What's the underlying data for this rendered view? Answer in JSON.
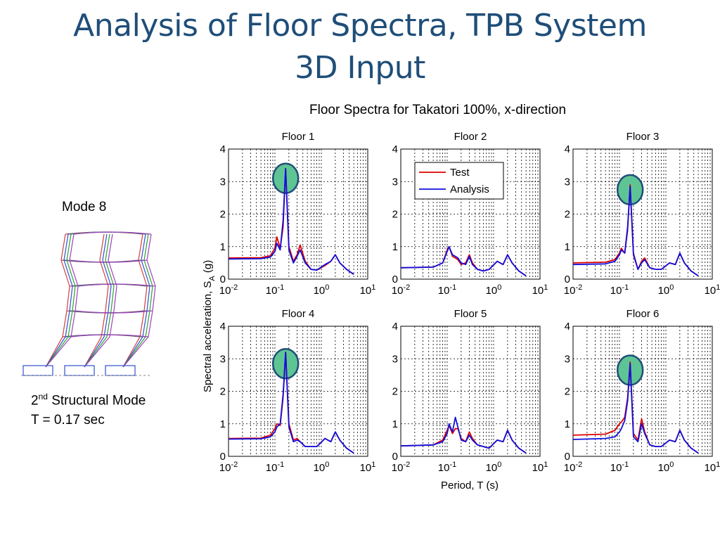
{
  "slide": {
    "title_line1": "Analysis of Floor Spectra, TPB System",
    "title_line2": "3D Input",
    "figure_title": "Floor Spectra for Takatori 100%, x-direction",
    "mode_label": "Mode 8",
    "caption_ordinal_number": "2",
    "caption_ordinal_suffix": "nd",
    "caption_mode_text": " Structural Mode",
    "caption_period": "T = 0.17 sec"
  },
  "colors": {
    "title": "#1f4e79",
    "test": "#e00000",
    "analysis": "#1010e0",
    "highlight_fill": "#5fc494",
    "highlight_stroke": "#1f4e79"
  },
  "chart_data": {
    "type": "line",
    "ylabel_main": "Spectral acceleration, S",
    "ylabel_sub": "A",
    "ylabel_unit": " (g)",
    "xlabel": "Period, T (s)",
    "x_scale": "log",
    "xlim": [
      0.01,
      10
    ],
    "ylim": [
      0,
      4
    ],
    "grid": true,
    "x_tick_labels": [
      "-2",
      "-1",
      "0",
      "1"
    ],
    "y_tick_labels": [
      "0",
      "1",
      "2",
      "3",
      "4"
    ],
    "legend": {
      "placement": "top-left of Floor 2",
      "entries": [
        "Test",
        "Analysis"
      ]
    },
    "panels": [
      {
        "title": "Floor 1",
        "highlight": {
          "x": 0.17,
          "y": 3.1
        },
        "series": [
          {
            "name": "Test",
            "x": [
              0.01,
              0.05,
              0.08,
              0.1,
              0.11,
              0.13,
              0.15,
              0.17,
              0.2,
              0.25,
              0.3,
              0.35,
              0.45,
              0.6,
              0.8,
              1.2,
              1.6,
              2.0,
              2.5,
              3.5,
              5.0
            ],
            "y": [
              0.65,
              0.66,
              0.72,
              0.95,
              1.3,
              0.95,
              1.6,
              3.4,
              1.0,
              0.55,
              0.75,
              1.05,
              0.55,
              0.3,
              0.28,
              0.42,
              0.55,
              0.75,
              0.5,
              0.3,
              0.15
            ]
          },
          {
            "name": "Analysis",
            "x": [
              0.01,
              0.05,
              0.08,
              0.1,
              0.11,
              0.13,
              0.15,
              0.17,
              0.2,
              0.25,
              0.3,
              0.35,
              0.45,
              0.6,
              0.8,
              1.2,
              1.6,
              2.0,
              2.5,
              3.5,
              5.0
            ],
            "y": [
              0.62,
              0.63,
              0.68,
              0.85,
              1.1,
              0.9,
              1.8,
              3.4,
              0.9,
              0.5,
              0.7,
              0.9,
              0.5,
              0.3,
              0.28,
              0.45,
              0.55,
              0.75,
              0.5,
              0.3,
              0.15
            ]
          }
        ]
      },
      {
        "title": "Floor 2",
        "series": [
          {
            "name": "Test",
            "x": [
              0.01,
              0.05,
              0.08,
              0.1,
              0.11,
              0.13,
              0.15,
              0.17,
              0.2,
              0.25,
              0.3,
              0.35,
              0.45,
              0.6,
              0.8,
              1.2,
              1.6,
              2.0,
              2.5,
              3.5,
              5.0
            ],
            "y": [
              0.35,
              0.37,
              0.5,
              0.9,
              1.0,
              0.7,
              0.65,
              0.6,
              0.45,
              0.5,
              0.75,
              0.5,
              0.3,
              0.25,
              0.3,
              0.55,
              0.45,
              0.75,
              0.5,
              0.25,
              0.1
            ]
          },
          {
            "name": "Analysis",
            "x": [
              0.01,
              0.05,
              0.08,
              0.1,
              0.11,
              0.13,
              0.15,
              0.17,
              0.2,
              0.25,
              0.3,
              0.35,
              0.45,
              0.6,
              0.8,
              1.2,
              1.6,
              2.0,
              2.5,
              3.5,
              5.0
            ],
            "y": [
              0.35,
              0.37,
              0.5,
              0.85,
              1.0,
              0.75,
              0.7,
              0.65,
              0.5,
              0.45,
              0.7,
              0.45,
              0.3,
              0.25,
              0.3,
              0.55,
              0.45,
              0.75,
              0.5,
              0.25,
              0.1
            ]
          }
        ]
      },
      {
        "title": "Floor 3",
        "highlight": {
          "x": 0.17,
          "y": 2.75
        },
        "series": [
          {
            "name": "Test",
            "x": [
              0.01,
              0.05,
              0.08,
              0.1,
              0.11,
              0.13,
              0.15,
              0.17,
              0.2,
              0.25,
              0.3,
              0.35,
              0.45,
              0.6,
              0.8,
              1.2,
              1.6,
              2.0,
              2.5,
              3.5,
              5.0
            ],
            "y": [
              0.5,
              0.52,
              0.6,
              0.8,
              0.95,
              0.8,
              1.5,
              2.9,
              0.8,
              0.3,
              0.55,
              0.65,
              0.35,
              0.3,
              0.3,
              0.5,
              0.45,
              0.8,
              0.5,
              0.25,
              0.1
            ]
          },
          {
            "name": "Analysis",
            "x": [
              0.01,
              0.05,
              0.08,
              0.1,
              0.11,
              0.13,
              0.15,
              0.17,
              0.2,
              0.25,
              0.3,
              0.35,
              0.45,
              0.6,
              0.8,
              1.2,
              1.6,
              2.0,
              2.5,
              3.5,
              5.0
            ],
            "y": [
              0.45,
              0.47,
              0.55,
              0.75,
              0.9,
              0.8,
              1.6,
              2.85,
              0.75,
              0.3,
              0.5,
              0.6,
              0.35,
              0.3,
              0.3,
              0.5,
              0.45,
              0.8,
              0.5,
              0.25,
              0.1
            ]
          }
        ]
      },
      {
        "title": "Floor 4",
        "highlight": {
          "x": 0.17,
          "y": 2.85
        },
        "series": [
          {
            "name": "Test",
            "x": [
              0.01,
              0.05,
              0.08,
              0.1,
              0.11,
              0.13,
              0.15,
              0.17,
              0.2,
              0.25,
              0.3,
              0.35,
              0.45,
              0.6,
              0.8,
              1.2,
              1.6,
              2.0,
              2.5,
              3.5,
              5.0
            ],
            "y": [
              0.55,
              0.56,
              0.65,
              0.85,
              1.0,
              0.95,
              1.8,
              3.2,
              1.0,
              0.5,
              0.55,
              0.45,
              0.3,
              0.3,
              0.3,
              0.55,
              0.45,
              0.75,
              0.5,
              0.25,
              0.1
            ]
          },
          {
            "name": "Analysis",
            "x": [
              0.01,
              0.05,
              0.08,
              0.1,
              0.11,
              0.13,
              0.15,
              0.17,
              0.2,
              0.25,
              0.3,
              0.35,
              0.45,
              0.6,
              0.8,
              1.2,
              1.6,
              2.0,
              2.5,
              3.5,
              5.0
            ],
            "y": [
              0.53,
              0.54,
              0.6,
              0.75,
              0.9,
              1.0,
              1.9,
              3.2,
              0.9,
              0.45,
              0.5,
              0.45,
              0.3,
              0.3,
              0.3,
              0.55,
              0.45,
              0.75,
              0.5,
              0.25,
              0.1
            ]
          }
        ]
      },
      {
        "title": "Floor 5",
        "series": [
          {
            "name": "Test",
            "x": [
              0.01,
              0.05,
              0.08,
              0.1,
              0.11,
              0.13,
              0.15,
              0.17,
              0.2,
              0.25,
              0.3,
              0.35,
              0.45,
              0.6,
              0.8,
              1.2,
              1.6,
              2.0,
              2.5,
              3.5,
              5.0
            ],
            "y": [
              0.32,
              0.35,
              0.5,
              0.8,
              0.95,
              0.7,
              0.85,
              0.85,
              0.55,
              0.45,
              0.75,
              0.55,
              0.35,
              0.3,
              0.25,
              0.5,
              0.45,
              0.8,
              0.5,
              0.25,
              0.1
            ]
          },
          {
            "name": "Analysis",
            "x": [
              0.01,
              0.05,
              0.08,
              0.1,
              0.11,
              0.13,
              0.15,
              0.17,
              0.2,
              0.25,
              0.3,
              0.35,
              0.45,
              0.6,
              0.8,
              1.2,
              1.6,
              2.0,
              2.5,
              3.5,
              5.0
            ],
            "y": [
              0.32,
              0.35,
              0.45,
              0.7,
              1.0,
              0.75,
              1.2,
              0.9,
              0.5,
              0.45,
              0.65,
              0.5,
              0.35,
              0.3,
              0.25,
              0.5,
              0.45,
              0.8,
              0.5,
              0.25,
              0.1
            ]
          }
        ]
      },
      {
        "title": "Floor 6",
        "highlight": {
          "x": 0.17,
          "y": 2.65
        },
        "series": [
          {
            "name": "Test",
            "x": [
              0.01,
              0.05,
              0.08,
              0.1,
              0.11,
              0.13,
              0.15,
              0.17,
              0.2,
              0.25,
              0.3,
              0.35,
              0.45,
              0.6,
              0.8,
              1.2,
              1.6,
              2.0,
              2.5,
              3.5,
              5.0
            ],
            "y": [
              0.65,
              0.68,
              0.8,
              1.0,
              1.05,
              1.2,
              1.8,
              2.9,
              0.7,
              0.5,
              1.15,
              0.75,
              0.35,
              0.3,
              0.3,
              0.5,
              0.45,
              0.8,
              0.5,
              0.25,
              0.1
            ]
          },
          {
            "name": "Analysis",
            "x": [
              0.01,
              0.05,
              0.08,
              0.1,
              0.11,
              0.13,
              0.15,
              0.17,
              0.2,
              0.25,
              0.3,
              0.35,
              0.45,
              0.6,
              0.8,
              1.2,
              1.6,
              2.0,
              2.5,
              3.5,
              5.0
            ],
            "y": [
              0.52,
              0.55,
              0.6,
              0.75,
              0.85,
              1.1,
              1.7,
              2.85,
              0.6,
              0.45,
              1.0,
              0.7,
              0.35,
              0.3,
              0.3,
              0.5,
              0.45,
              0.8,
              0.5,
              0.25,
              0.1
            ]
          }
        ]
      }
    ]
  }
}
